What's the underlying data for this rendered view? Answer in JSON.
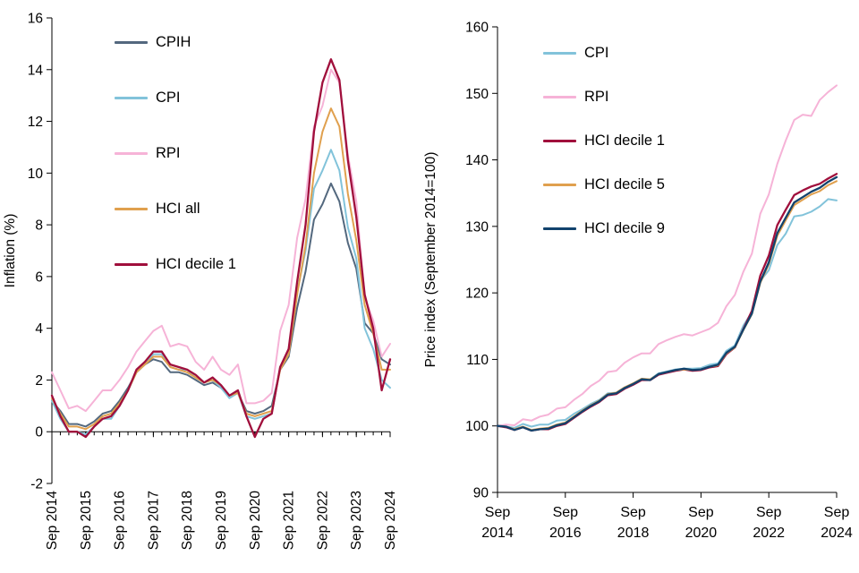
{
  "chart_data": [
    {
      "type": "line",
      "title": "",
      "ylabel": "Inflation (%)",
      "ymin": -2,
      "ymax": 16,
      "ystep": 2,
      "x_axis_at": 0,
      "x_label_rotate": true,
      "x_label_step": 4,
      "x_minor_tick_step": 1,
      "x_tick_labels": [
        "Sep 2014",
        "Sep 2015",
        "Sep 2016",
        "Sep 2017",
        "Sep 2018",
        "Sep 2019",
        "Sep 2020",
        "Sep 2021",
        "Sep 2022",
        "Sep 2023",
        "Sep 2024"
      ],
      "x_points": [
        "Sep 2014",
        "Dec 2014",
        "Mar 2015",
        "Jun 2015",
        "Sep 2015",
        "Dec 2015",
        "Mar 2016",
        "Jun 2016",
        "Sep 2016",
        "Dec 2016",
        "Mar 2017",
        "Jun 2017",
        "Sep 2017",
        "Dec 2017",
        "Mar 2018",
        "Jun 2018",
        "Sep 2018",
        "Dec 2018",
        "Mar 2019",
        "Jun 2019",
        "Sep 2019",
        "Dec 2019",
        "Mar 2020",
        "Jun 2020",
        "Sep 2020",
        "Dec 2020",
        "Mar 2021",
        "Jun 2021",
        "Sep 2021",
        "Dec 2021",
        "Mar 2022",
        "Jun 2022",
        "Sep 2022",
        "Dec 2022",
        "Mar 2023",
        "Jun 2023",
        "Sep 2023",
        "Dec 2023",
        "Mar 2024",
        "Jun 2024",
        "Sep 2024"
      ],
      "legend_position": "top-left-inside",
      "grid": false,
      "series": [
        {
          "name": "CPIH",
          "color": "#53687e",
          "width": 2,
          "values": [
            1.2,
            0.8,
            0.3,
            0.3,
            0.2,
            0.4,
            0.7,
            0.8,
            1.2,
            1.7,
            2.3,
            2.6,
            2.8,
            2.7,
            2.3,
            2.3,
            2.2,
            2.0,
            1.8,
            1.9,
            1.7,
            1.4,
            1.5,
            0.8,
            0.7,
            0.8,
            1.0,
            2.4,
            2.9,
            4.8,
            6.2,
            8.2,
            8.8,
            9.6,
            8.9,
            7.3,
            6.3,
            4.2,
            3.8,
            2.8,
            2.6
          ]
        },
        {
          "name": "CPI",
          "color": "#82c3da",
          "width": 2,
          "values": [
            1.2,
            0.5,
            0.0,
            0.0,
            -0.1,
            0.2,
            0.5,
            0.5,
            1.0,
            1.6,
            2.3,
            2.6,
            3.0,
            3.0,
            2.5,
            2.4,
            2.4,
            2.1,
            1.9,
            2.0,
            1.7,
            1.3,
            1.5,
            0.6,
            0.5,
            0.6,
            0.7,
            2.5,
            3.1,
            5.4,
            7.0,
            9.4,
            10.1,
            10.9,
            10.1,
            7.9,
            6.7,
            4.0,
            3.2,
            2.0,
            1.7
          ]
        },
        {
          "name": "RPI",
          "color": "#f6b3d7",
          "width": 2,
          "values": [
            2.3,
            1.6,
            0.9,
            1.0,
            0.8,
            1.2,
            1.6,
            1.6,
            2.0,
            2.5,
            3.1,
            3.5,
            3.9,
            4.1,
            3.3,
            3.4,
            3.3,
            2.7,
            2.4,
            2.9,
            2.4,
            2.2,
            2.6,
            1.1,
            1.1,
            1.2,
            1.5,
            3.9,
            4.9,
            7.5,
            9.0,
            11.8,
            12.6,
            14.0,
            13.5,
            10.7,
            8.9,
            5.2,
            4.3,
            2.9,
            3.4
          ]
        },
        {
          "name": "HCI all",
          "color": "#e0a04e",
          "width": 2,
          "values": [
            1.3,
            0.7,
            0.2,
            0.2,
            0.1,
            0.3,
            0.6,
            0.7,
            1.1,
            1.6,
            2.3,
            2.6,
            2.9,
            2.9,
            2.5,
            2.4,
            2.3,
            2.1,
            1.9,
            2.0,
            1.8,
            1.4,
            1.5,
            0.7,
            0.6,
            0.7,
            0.8,
            2.4,
            3.0,
            5.3,
            7.2,
            10.0,
            11.6,
            12.5,
            11.8,
            9.2,
            7.4,
            4.9,
            3.8,
            2.4,
            2.4
          ]
        },
        {
          "name": "HCI decile 1",
          "color": "#a00f3c",
          "width": 2.3,
          "values": [
            1.4,
            0.6,
            0.0,
            0.0,
            -0.2,
            0.2,
            0.5,
            0.6,
            1.0,
            1.6,
            2.4,
            2.7,
            3.1,
            3.1,
            2.6,
            2.5,
            2.4,
            2.2,
            1.9,
            2.1,
            1.8,
            1.4,
            1.6,
            0.6,
            -0.2,
            0.5,
            0.7,
            2.5,
            3.2,
            5.8,
            8.0,
            11.6,
            13.5,
            14.4,
            13.6,
            10.5,
            8.3,
            5.3,
            4.0,
            1.6,
            2.8
          ]
        }
      ]
    },
    {
      "type": "line",
      "title": "",
      "ylabel": "Price index (September 2014=100)",
      "ymin": 90,
      "ymax": 160,
      "ystep": 10,
      "x_label_rotate": false,
      "x_label_step": 8,
      "x_tick_labels": [
        "Sep 2014",
        "Sep 2016",
        "Sep 2018",
        "Sep 2020",
        "Sep 2022",
        "Sep 2024"
      ],
      "x_points": [
        "Sep 2014",
        "Dec 2014",
        "Mar 2015",
        "Jun 2015",
        "Sep 2015",
        "Dec 2015",
        "Mar 2016",
        "Jun 2016",
        "Sep 2016",
        "Dec 2016",
        "Mar 2017",
        "Jun 2017",
        "Sep 2017",
        "Dec 2017",
        "Mar 2018",
        "Jun 2018",
        "Sep 2018",
        "Dec 2018",
        "Mar 2019",
        "Jun 2019",
        "Sep 2019",
        "Dec 2019",
        "Mar 2020",
        "Jun 2020",
        "Sep 2020",
        "Dec 2020",
        "Mar 2021",
        "Jun 2021",
        "Sep 2021",
        "Dec 2021",
        "Mar 2022",
        "Jun 2022",
        "Sep 2022",
        "Dec 2022",
        "Mar 2023",
        "Jun 2023",
        "Sep 2023",
        "Dec 2023",
        "Mar 2024",
        "Jun 2024",
        "Sep 2024"
      ],
      "legend_position": "top-left-inside",
      "grid": false,
      "series": [
        {
          "name": "CPI",
          "color": "#82c3da",
          "width": 2,
          "values": [
            100,
            99.9,
            99.7,
            100.3,
            99.9,
            100.2,
            100.2,
            100.8,
            100.9,
            101.8,
            102.5,
            103.3,
            103.9,
            104.9,
            105.0,
            105.8,
            106.4,
            107.1,
            107.0,
            107.9,
            108.2,
            108.5,
            108.6,
            108.6,
            108.7,
            109.2,
            109.4,
            111.3,
            112.1,
            115.1,
            117.1,
            121.8,
            123.4,
            127.2,
            128.9,
            131.5,
            131.7,
            132.2,
            133.0,
            134.1,
            133.9
          ]
        },
        {
          "name": "RPI",
          "color": "#f6b3d7",
          "width": 2,
          "values": [
            100,
            100.2,
            100.1,
            101.0,
            100.8,
            101.4,
            101.7,
            102.6,
            102.8,
            103.9,
            104.8,
            106.0,
            106.8,
            108.1,
            108.3,
            109.5,
            110.3,
            110.9,
            110.9,
            112.3,
            112.9,
            113.4,
            113.8,
            113.6,
            114.1,
            114.6,
            115.5,
            118.0,
            119.7,
            123.2,
            125.9,
            131.9,
            134.8,
            139.4,
            142.9,
            146.0,
            146.8,
            146.6,
            149.0,
            150.2,
            151.2
          ]
        },
        {
          "name": "HCI decile 1",
          "color": "#a00f3c",
          "width": 2.3,
          "values": [
            100,
            99.8,
            99.4,
            99.8,
            99.3,
            99.5,
            99.5,
            100.0,
            100.3,
            101.2,
            102.1,
            102.9,
            103.6,
            104.6,
            104.8,
            105.6,
            106.2,
            106.9,
            106.9,
            107.7,
            108.0,
            108.3,
            108.5,
            108.3,
            108.4,
            108.8,
            109.0,
            110.8,
            111.8,
            114.6,
            117.3,
            122.6,
            125.6,
            130.2,
            132.5,
            134.7,
            135.4,
            136.0,
            136.4,
            137.2,
            137.9
          ]
        },
        {
          "name": "HCI decile 5",
          "color": "#e0a04e",
          "width": 2,
          "values": [
            100,
            99.9,
            99.5,
            99.9,
            99.4,
            99.6,
            99.7,
            100.2,
            100.5,
            101.4,
            102.3,
            103.1,
            103.8,
            104.8,
            105.0,
            105.8,
            106.4,
            107.1,
            107.0,
            107.8,
            108.1,
            108.4,
            108.5,
            108.4,
            108.5,
            108.9,
            109.1,
            110.9,
            111.8,
            114.4,
            116.8,
            121.5,
            124.3,
            128.6,
            130.9,
            133.2,
            134.0,
            134.8,
            135.3,
            136.2,
            136.8
          ]
        },
        {
          "name": "HCI decile 9",
          "color": "#12436d",
          "width": 2.3,
          "values": [
            100,
            99.9,
            99.4,
            99.8,
            99.3,
            99.5,
            99.6,
            100.1,
            100.4,
            101.3,
            102.2,
            103.0,
            103.7,
            104.7,
            104.9,
            105.7,
            106.3,
            107.0,
            106.9,
            107.8,
            108.1,
            108.4,
            108.6,
            108.4,
            108.5,
            108.9,
            109.2,
            111.0,
            111.9,
            114.5,
            116.9,
            121.7,
            124.6,
            129.0,
            131.3,
            133.6,
            134.4,
            135.2,
            135.8,
            136.7,
            137.4
          ]
        }
      ]
    }
  ]
}
